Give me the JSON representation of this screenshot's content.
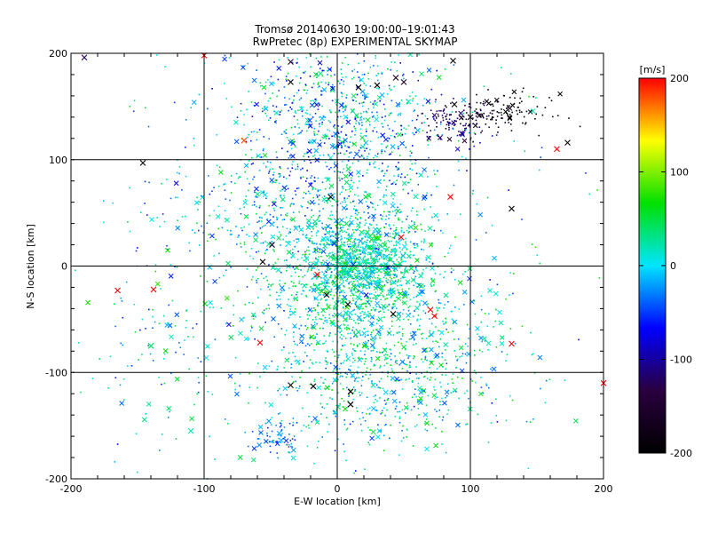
{
  "chart_data": {
    "type": "scatter",
    "title": "Tromsø 20140630 19:00:00–19:01:43",
    "subtitle": "RwPretec (8p) EXPERIMENTAL SKYMAP",
    "xlabel": "E-W location [km]",
    "ylabel": "N-S location [km]",
    "xlim": [
      -200,
      200
    ],
    "ylim": [
      -200,
      200
    ],
    "x_ticks": [
      -200,
      -100,
      0,
      100,
      200
    ],
    "y_ticks": [
      -200,
      -100,
      0,
      100,
      200
    ],
    "grid": true,
    "colorbar": {
      "label": "[m/s]",
      "range": [
        -200,
        200
      ],
      "ticks": [
        200,
        100,
        0,
        -100,
        -200
      ],
      "colormap": [
        "#000000",
        "#2a003f",
        "#0000ff",
        "#00e5ff",
        "#00e000",
        "#ffff00",
        "#ff0000"
      ]
    },
    "crosses": [
      {
        "x": -190,
        "y": 196,
        "v": -120
      },
      {
        "x": -100,
        "y": 198,
        "v": 200
      },
      {
        "x": -35,
        "y": 192,
        "v": -150
      },
      {
        "x": -35,
        "y": 173,
        "v": -200
      },
      {
        "x": -70,
        "y": 118,
        "v": 180
      },
      {
        "x": -146,
        "y": 97,
        "v": -200
      },
      {
        "x": -5,
        "y": 65,
        "v": -200
      },
      {
        "x": 131,
        "y": 54,
        "v": -200
      },
      {
        "x": 48,
        "y": 27,
        "v": 200
      },
      {
        "x": -56,
        "y": 4,
        "v": -200
      },
      {
        "x": -49,
        "y": 20,
        "v": -160
      },
      {
        "x": -165,
        "y": -23,
        "v": 200
      },
      {
        "x": -138,
        "y": -22,
        "v": 200
      },
      {
        "x": -15,
        "y": -8,
        "v": 200
      },
      {
        "x": -8,
        "y": -27,
        "v": -200
      },
      {
        "x": 8,
        "y": -36,
        "v": -200
      },
      {
        "x": 42,
        "y": -45,
        "v": -200
      },
      {
        "x": 70,
        "y": -41,
        "v": 200
      },
      {
        "x": 73,
        "y": -47,
        "v": 200
      },
      {
        "x": -58,
        "y": -72,
        "v": 200
      },
      {
        "x": 131,
        "y": -73,
        "v": 200
      },
      {
        "x": -35,
        "y": -112,
        "v": -200
      },
      {
        "x": -18,
        "y": -113,
        "v": -200
      },
      {
        "x": 10,
        "y": -118,
        "v": -200
      },
      {
        "x": 10,
        "y": -130,
        "v": -200
      },
      {
        "x": 200,
        "y": -110,
        "v": 200
      },
      {
        "x": 165,
        "y": 110,
        "v": 200
      },
      {
        "x": 173,
        "y": 116,
        "v": -200
      },
      {
        "x": 87,
        "y": 193,
        "v": -200
      },
      {
        "x": 50,
        "y": 173,
        "v": -150
      },
      {
        "x": 44,
        "y": 177,
        "v": -160
      },
      {
        "x": 16,
        "y": 168,
        "v": -200
      },
      {
        "x": 30,
        "y": 170,
        "v": -200
      },
      {
        "x": 85,
        "y": 65,
        "v": 200
      },
      {
        "x": 88,
        "y": 152,
        "v": -200
      },
      {
        "x": 100,
        "y": 140,
        "v": -180
      },
      {
        "x": -20,
        "y": 0,
        "v": -20
      },
      {
        "x": 5,
        "y": -5,
        "v": 30
      },
      {
        "x": -140,
        "y": -75,
        "v": 40
      },
      {
        "x": -110,
        "y": -155,
        "v": 20
      }
    ],
    "clusters": [
      {
        "cx": 10,
        "cy": -15,
        "sx": 30,
        "sy": 35,
        "n": 1100,
        "vmin": -40,
        "vmax": 80
      },
      {
        "cx": 20,
        "cy": 5,
        "sx": 18,
        "sy": 14,
        "n": 500,
        "vmin": -20,
        "vmax": 60
      },
      {
        "cx": 5,
        "cy": 135,
        "sx": 38,
        "sy": 38,
        "n": 650,
        "vmin": -90,
        "vmax": 60
      },
      {
        "cx": -20,
        "cy": 95,
        "sx": 55,
        "sy": 45,
        "n": 300,
        "vmin": -60,
        "vmax": 60
      },
      {
        "cx": 25,
        "cy": -110,
        "sx": 42,
        "sy": 35,
        "n": 450,
        "vmin": -50,
        "vmax": 70
      },
      {
        "cx": -20,
        "cy": 40,
        "sx": 50,
        "sy": 25,
        "n": 350,
        "vmin": -60,
        "vmax": 60
      },
      {
        "cx": 60,
        "cy": -60,
        "sx": 40,
        "sy": 40,
        "n": 300,
        "vmin": -40,
        "vmax": 80
      },
      {
        "cx": 90,
        "cy": 135,
        "sx": 15,
        "sy": 10,
        "n": 120,
        "vmin": -160,
        "vmax": -90
      },
      {
        "cx": 125,
        "cy": 145,
        "sx": 18,
        "sy": 8,
        "n": 110,
        "vmin": -220,
        "vmax": -170
      },
      {
        "cx": -45,
        "cy": -160,
        "sx": 8,
        "sy": 10,
        "n": 70,
        "vmin": -60,
        "vmax": -10
      },
      {
        "cx": -120,
        "cy": -80,
        "sx": 35,
        "sy": 60,
        "n": 120,
        "vmin": -60,
        "vmax": 60
      },
      {
        "cx": 0,
        "cy": 0,
        "sx": 110,
        "sy": 110,
        "n": 250,
        "vmin": -80,
        "vmax": 80
      }
    ]
  }
}
